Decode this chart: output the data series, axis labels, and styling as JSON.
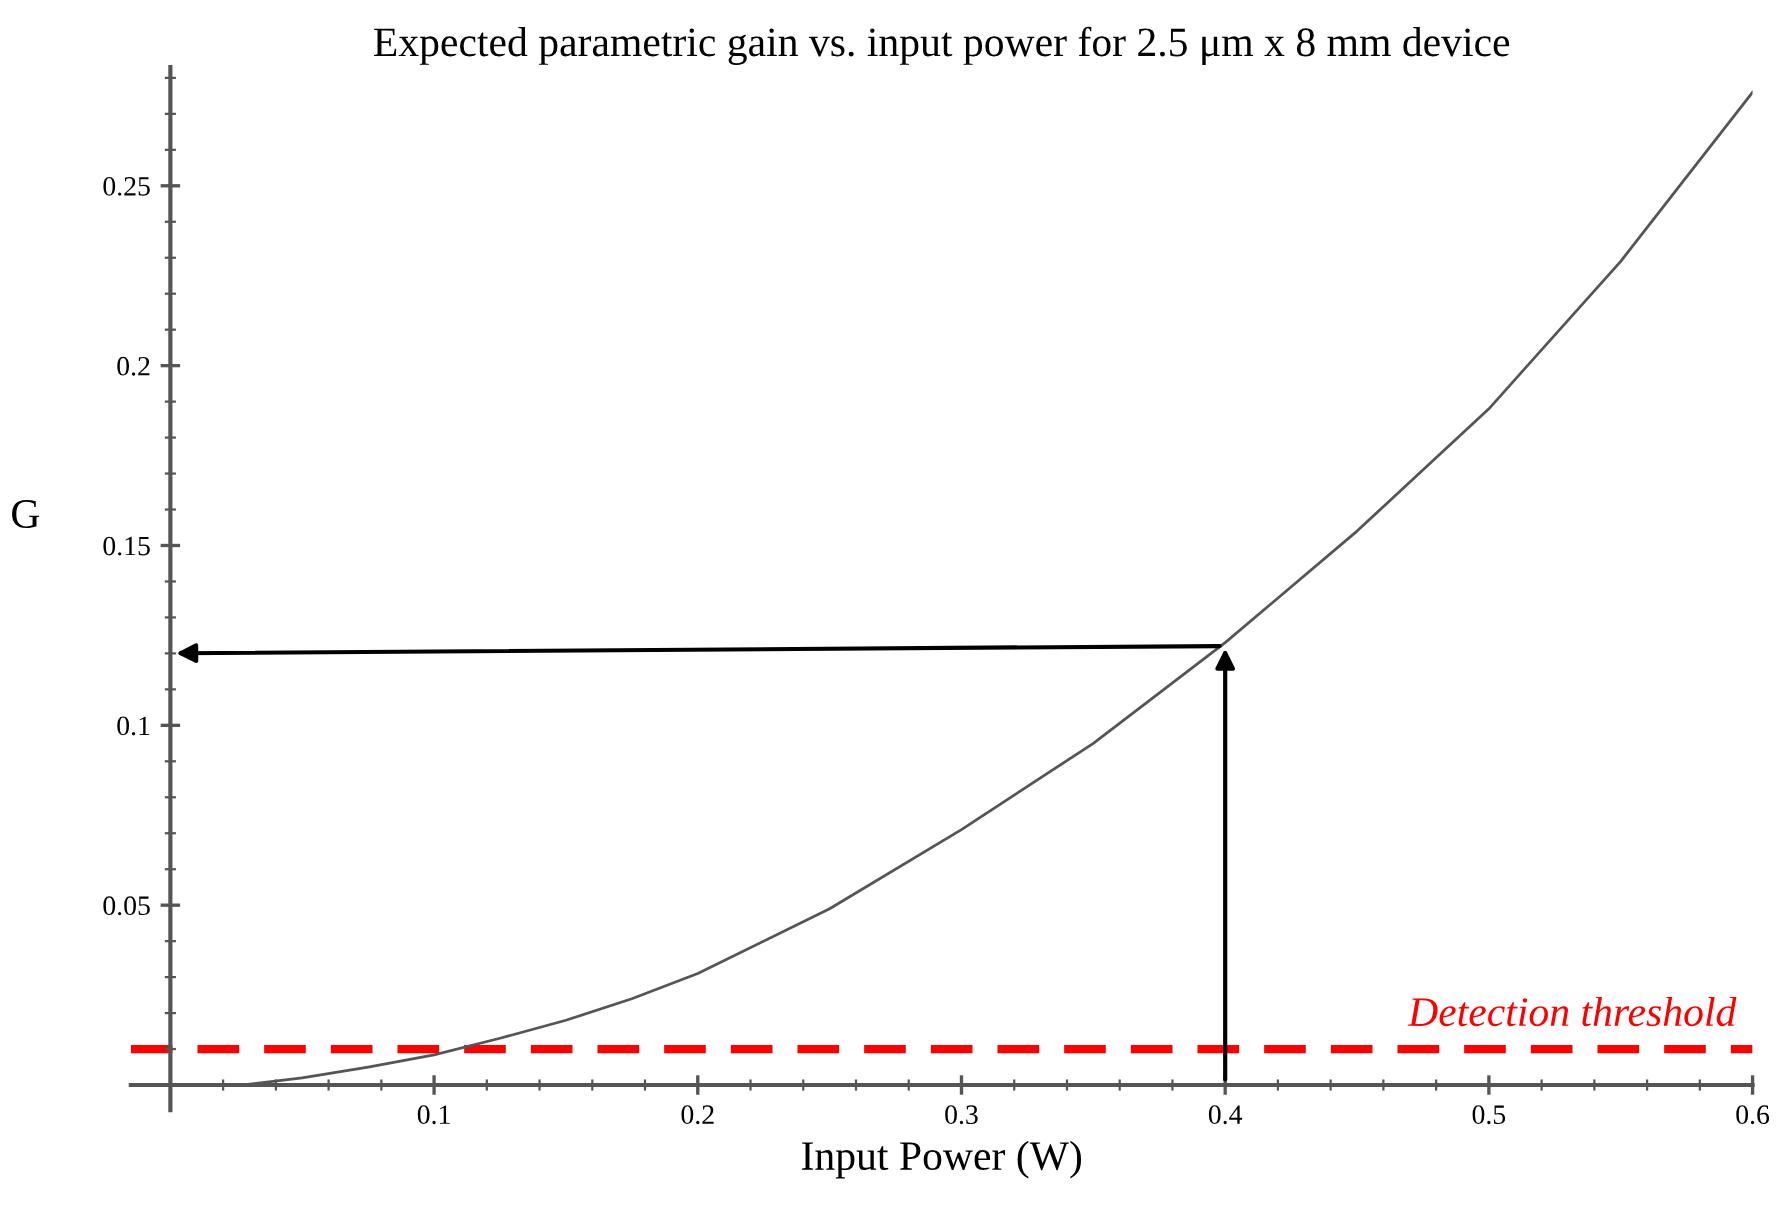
{
  "chart_data": {
    "type": "line",
    "title": "Expected parametric gain vs. input power for 2.5 μm x 8 mm device",
    "xlabel": "Input Power (W)",
    "ylabel": "G",
    "series": [
      {
        "color": "#555555",
        "x": [
          0.027,
          0.05,
          0.075,
          0.1,
          0.125,
          0.15,
          0.175,
          0.2,
          0.25,
          0.3,
          0.35,
          0.4,
          0.45,
          0.5,
          0.55,
          0.6
        ],
        "values": [
          0.0,
          0.002,
          0.005,
          0.0084,
          0.013,
          0.018,
          0.024,
          0.031,
          0.049,
          0.071,
          0.095,
          0.123,
          0.154,
          0.188,
          0.229,
          0.276
        ]
      }
    ],
    "xlim": [
      -0.015,
      0.6
    ],
    "ylim": [
      -0.007,
      0.283
    ],
    "xticks": [
      0.1,
      0.2,
      0.3,
      0.4,
      0.5,
      0.6
    ],
    "yticks": [
      0.05,
      0.1,
      0.15,
      0.2,
      0.25
    ],
    "ref_lines": [
      {
        "axis": "y",
        "value": 0.01,
        "label": "Detection threshold",
        "color": "#ff0000",
        "line_style": "dashed"
      }
    ],
    "grid": false,
    "marker": "none",
    "line_style": "solid"
  }
}
